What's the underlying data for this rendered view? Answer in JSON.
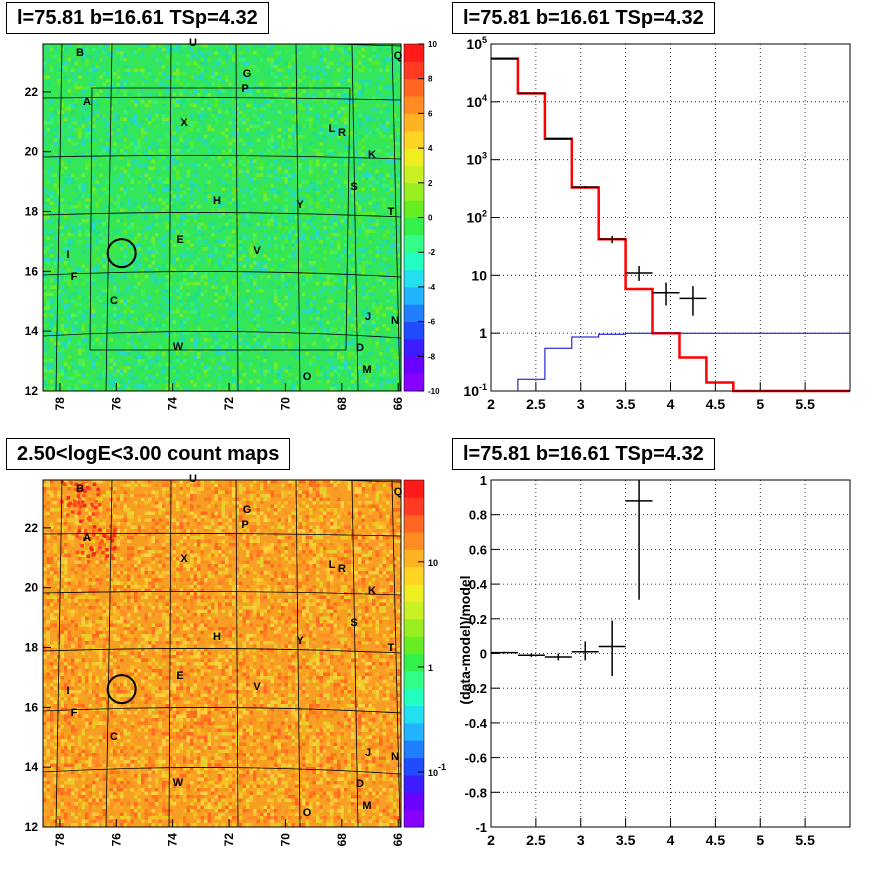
{
  "titles": {
    "top_left": "l=75.81 b=16.61 TSp=4.32",
    "top_right": "l=75.81 b=16.61 TSp=4.32",
    "bottom_left": "2.50<logE<3.00 count maps",
    "bottom_right": "l=75.81 b=16.61 TSp=4.32"
  },
  "maps": {
    "x_ticks": [
      "78",
      "76",
      "74",
      "72",
      "70",
      "68",
      "66"
    ],
    "y_ticks": [
      "12",
      "14",
      "16",
      "18",
      "20",
      "22"
    ],
    "source_labels": [
      "A",
      "B",
      "C",
      "D",
      "E",
      "F",
      "G",
      "H",
      "I",
      "J",
      "K",
      "L",
      "M",
      "N",
      "O",
      "P",
      "Q",
      "R",
      "S",
      "T",
      "U",
      "V",
      "W",
      "X",
      "Y"
    ],
    "circle": {
      "l": 75.81,
      "b": 16.61
    },
    "colors": {
      "residual_bg": "#33e65a",
      "count_bg": "#f5a020"
    }
  },
  "chart_data": [
    {
      "type": "heatmap",
      "title": "l=75.81 b=16.61 TSp=4.32",
      "xlim": [
        78.6,
        65.9
      ],
      "ylim": [
        12,
        23.6
      ],
      "colorbar": {
        "min": -10,
        "max": 10,
        "ticks": [
          "-10",
          "-8",
          "-6",
          "-4",
          "-2",
          "0",
          "2",
          "4",
          "6",
          "8",
          "10"
        ]
      }
    },
    {
      "type": "line",
      "title": "l=75.81 b=16.61 TSp=4.32",
      "log_y": true,
      "xlim": [
        2,
        6
      ],
      "ylim": [
        0.1,
        100000
      ],
      "x_ticks": [
        "2",
        "2.5",
        "3",
        "3.5",
        "4",
        "4.5",
        "5",
        "5.5"
      ],
      "y_ticks": [
        "10^-1",
        "1",
        "10",
        "10^2",
        "10^3",
        "10^4",
        "10^5"
      ],
      "grid": true,
      "series": [
        {
          "color": "#ff0000",
          "bins": [
            [
              2.0,
              2.3,
              56000
            ],
            [
              2.3,
              2.6,
              14000
            ],
            [
              2.6,
              2.9,
              2300
            ],
            [
              2.9,
              3.2,
              330
            ],
            [
              3.2,
              3.5,
              42
            ],
            [
              3.5,
              3.8,
              5.8
            ],
            [
              3.8,
              4.1,
              1.0
            ],
            [
              4.1,
              4.4,
              0.38
            ],
            [
              4.4,
              4.7,
              0.14
            ],
            [
              4.7,
              5.0,
              0.1
            ],
            [
              5.0,
              6.0,
              0.1
            ]
          ]
        },
        {
          "color": "#0000cc",
          "bins": [
            [
              2.0,
              2.3,
              0.07
            ],
            [
              2.3,
              2.6,
              0.16
            ],
            [
              2.6,
              2.9,
              0.55
            ],
            [
              2.9,
              3.2,
              0.86
            ],
            [
              3.2,
              3.5,
              0.96
            ],
            [
              3.5,
              3.8,
              1.0
            ],
            [
              3.8,
              4.1,
              1.0
            ],
            [
              4.1,
              4.4,
              1.0
            ],
            [
              4.4,
              4.7,
              1.0
            ],
            [
              4.7,
              5.0,
              1.0
            ],
            [
              5.0,
              6.0,
              1.0
            ]
          ]
        }
      ],
      "points": [
        {
          "x": 2.15,
          "y": 56000,
          "xerr": 0.15,
          "ylo": 55800,
          "yhi": 56200
        },
        {
          "x": 2.45,
          "y": 14000,
          "xerr": 0.15,
          "ylo": 13900,
          "yhi": 14100
        },
        {
          "x": 2.75,
          "y": 2300,
          "xerr": 0.15,
          "ylo": 2250,
          "yhi": 2350
        },
        {
          "x": 3.05,
          "y": 335,
          "xerr": 0.15,
          "ylo": 318,
          "yhi": 352
        },
        {
          "x": 3.35,
          "y": 42,
          "xerr": 0.15,
          "ylo": 36,
          "yhi": 48
        },
        {
          "x": 3.65,
          "y": 11,
          "xerr": 0.15,
          "ylo": 8,
          "yhi": 14.5
        },
        {
          "x": 3.95,
          "y": 5,
          "xerr": 0.15,
          "ylo": 3,
          "yhi": 7.5
        },
        {
          "x": 4.25,
          "y": 4,
          "xerr": 0.15,
          "ylo": 2,
          "yhi": 6.5
        }
      ]
    },
    {
      "type": "heatmap",
      "title": "2.50<logE<3.00 count maps",
      "xlim": [
        78.6,
        65.9
      ],
      "ylim": [
        12,
        23.6
      ],
      "colorbar": {
        "log": true,
        "min": 0.03,
        "max": 60,
        "ticks": [
          "10^-1",
          "1",
          "10"
        ]
      }
    },
    {
      "type": "scatter",
      "title": "l=75.81 b=16.61 TSp=4.32",
      "ylabel": "(data-model)/model",
      "xlim": [
        2,
        6
      ],
      "ylim": [
        -1,
        1
      ],
      "x_ticks": [
        "2",
        "2.5",
        "3",
        "3.5",
        "4",
        "4.5",
        "5",
        "5.5"
      ],
      "y_ticks": [
        "-1",
        "-0.8",
        "-0.6",
        "-0.4",
        "-0.2",
        "0",
        "0.2",
        "0.4",
        "0.6",
        "0.8",
        "1"
      ],
      "grid": true,
      "points": [
        {
          "x": 2.15,
          "y": 0.005,
          "xerr": 0.15,
          "ylo": 0.0,
          "yhi": 0.01
        },
        {
          "x": 2.45,
          "y": -0.01,
          "xerr": 0.15,
          "ylo": -0.02,
          "yhi": 0.0
        },
        {
          "x": 2.75,
          "y": -0.02,
          "xerr": 0.15,
          "ylo": -0.04,
          "yhi": 0.0
        },
        {
          "x": 3.05,
          "y": 0.01,
          "xerr": 0.15,
          "ylo": -0.04,
          "yhi": 0.07
        },
        {
          "x": 3.35,
          "y": 0.04,
          "xerr": 0.15,
          "ylo": -0.13,
          "yhi": 0.19
        },
        {
          "x": 3.65,
          "y": 0.88,
          "xerr": 0.15,
          "ylo": 0.31,
          "yhi": 1.0
        }
      ]
    }
  ]
}
